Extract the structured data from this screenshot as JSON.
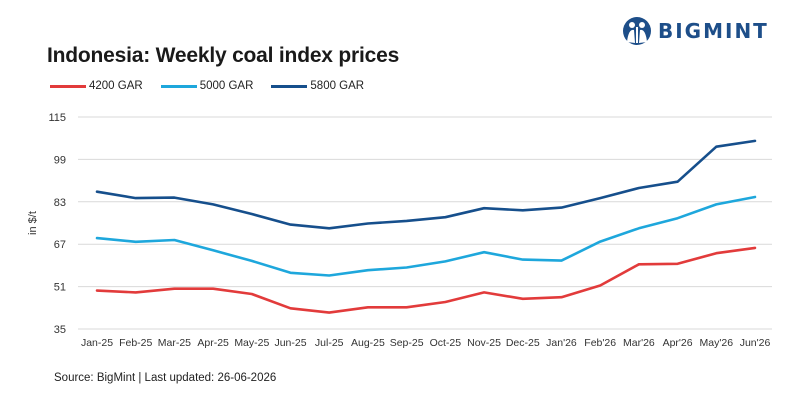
{
  "brand": {
    "name": "BIGMINT"
  },
  "title": "Indonesia: Weekly coal index prices",
  "source": "Source: BigMint | Last updated: 26-06-2026",
  "chart_data": {
    "type": "line",
    "title": "Indonesia: Weekly coal index prices",
    "xlabel": "",
    "ylabel": "in $/t",
    "ylim": [
      35,
      115
    ],
    "yticks": [
      35,
      51,
      67,
      83,
      99,
      115
    ],
    "grid": "horizontal",
    "legend_position": "top-left",
    "categories": [
      "Jan-25",
      "Feb-25",
      "Mar-25",
      "Apr-25",
      "May-25",
      "Jun-25",
      "Jul-25",
      "Aug-25",
      "Sep-25",
      "Oct-25",
      "Nov-25",
      "Dec-25",
      "Jan'26",
      "Feb'26",
      "Mar'26",
      "Apr'26",
      "May'26",
      "Jun'26"
    ],
    "series": [
      {
        "name": "4200 GAR",
        "color": "#e23b3b",
        "values": [
          49.5,
          48.8,
          50.2,
          50.2,
          48.2,
          42.8,
          41.2,
          43.2,
          43.2,
          45.2,
          48.8,
          46.4,
          47.0,
          51.4,
          59.4,
          59.6,
          63.6,
          65.6
        ]
      },
      {
        "name": "5000 GAR",
        "color": "#1ea7dc",
        "values": [
          69.3,
          67.9,
          68.6,
          64.7,
          60.7,
          56.2,
          55.2,
          57.2,
          58.2,
          60.5,
          64.0,
          61.2,
          60.8,
          68.0,
          73.0,
          76.8,
          82.0,
          84.8
        ]
      },
      {
        "name": "5800 GAR",
        "color": "#164f8c",
        "values": [
          86.8,
          84.4,
          84.6,
          82.0,
          78.4,
          74.4,
          73.0,
          74.8,
          75.8,
          77.2,
          80.6,
          79.8,
          80.8,
          84.4,
          88.2,
          90.6,
          103.8,
          106.0
        ]
      }
    ]
  }
}
